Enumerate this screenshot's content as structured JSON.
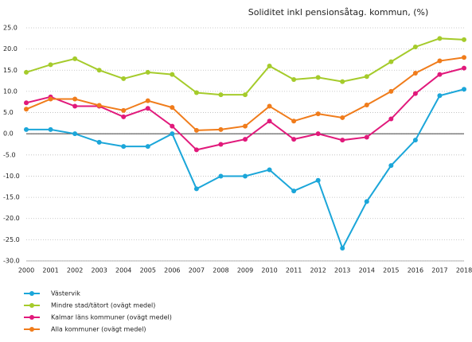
{
  "chart_data": {
    "type": "line",
    "title": "Soliditet inkl pensionsåtag. kommun, (%)",
    "categories": [
      "2000",
      "2001",
      "2002",
      "2003",
      "2004",
      "2005",
      "2006",
      "2007",
      "2008",
      "2009",
      "2010",
      "2011",
      "2012",
      "2013",
      "2014",
      "2015",
      "2016",
      "2017",
      "2018"
    ],
    "series": [
      {
        "name": "Västervik",
        "color": "#1ba6d9",
        "values": [
          1.0,
          1.0,
          0.0,
          -2.0,
          -3.0,
          -3.0,
          0.0,
          -13.0,
          -10.0,
          -10.0,
          -8.5,
          -13.5,
          -11.0,
          -27.0,
          -16.0,
          -7.5,
          -1.5,
          9.0,
          10.5
        ]
      },
      {
        "name": "Mindre stad/tätort (ovägt medel)",
        "color": "#a5cb2b",
        "values": [
          14.5,
          16.3,
          17.7,
          15.0,
          13.0,
          14.5,
          14.0,
          9.7,
          9.2,
          9.2,
          16.0,
          12.8,
          13.3,
          12.3,
          13.5,
          17.0,
          20.5,
          22.5,
          22.2
        ]
      },
      {
        "name": "Kalmar läns kommuner (ovägt medel)",
        "color": "#e1197b",
        "values": [
          7.3,
          8.7,
          6.5,
          6.5,
          4.0,
          6.0,
          1.8,
          -3.8,
          -2.5,
          -1.3,
          3.0,
          -1.3,
          0.0,
          -1.5,
          -0.8,
          3.5,
          9.5,
          14.0,
          15.5
        ]
      },
      {
        "name": "Alla kommuner (ovägt medel)",
        "color": "#f07c1b",
        "values": [
          5.8,
          8.2,
          8.2,
          6.7,
          5.5,
          7.8,
          6.2,
          0.8,
          1.0,
          1.8,
          6.5,
          3.0,
          4.7,
          3.8,
          6.8,
          10.0,
          14.3,
          17.2,
          18.0
        ]
      }
    ],
    "ylim": [
      -30,
      25
    ],
    "yticks": [
      {
        "value": -30,
        "label": "-30.0"
      },
      {
        "value": -25,
        "label": "-25.0"
      },
      {
        "value": -20,
        "label": "-20.0"
      },
      {
        "value": -15,
        "label": "-15.0"
      },
      {
        "value": -10,
        "label": "-10.0"
      },
      {
        "value": -5,
        "label": "-5.0"
      },
      {
        "value": 0,
        "label": "0.0"
      },
      {
        "value": 5,
        "label": "5.0"
      },
      {
        "value": 10,
        "label": "10.0"
      },
      {
        "value": 15,
        "label": "15.0"
      },
      {
        "value": 20,
        "label": "20.0"
      },
      {
        "value": 25,
        "label": "25.0"
      }
    ],
    "grid": true,
    "legend": "bottom-left"
  }
}
